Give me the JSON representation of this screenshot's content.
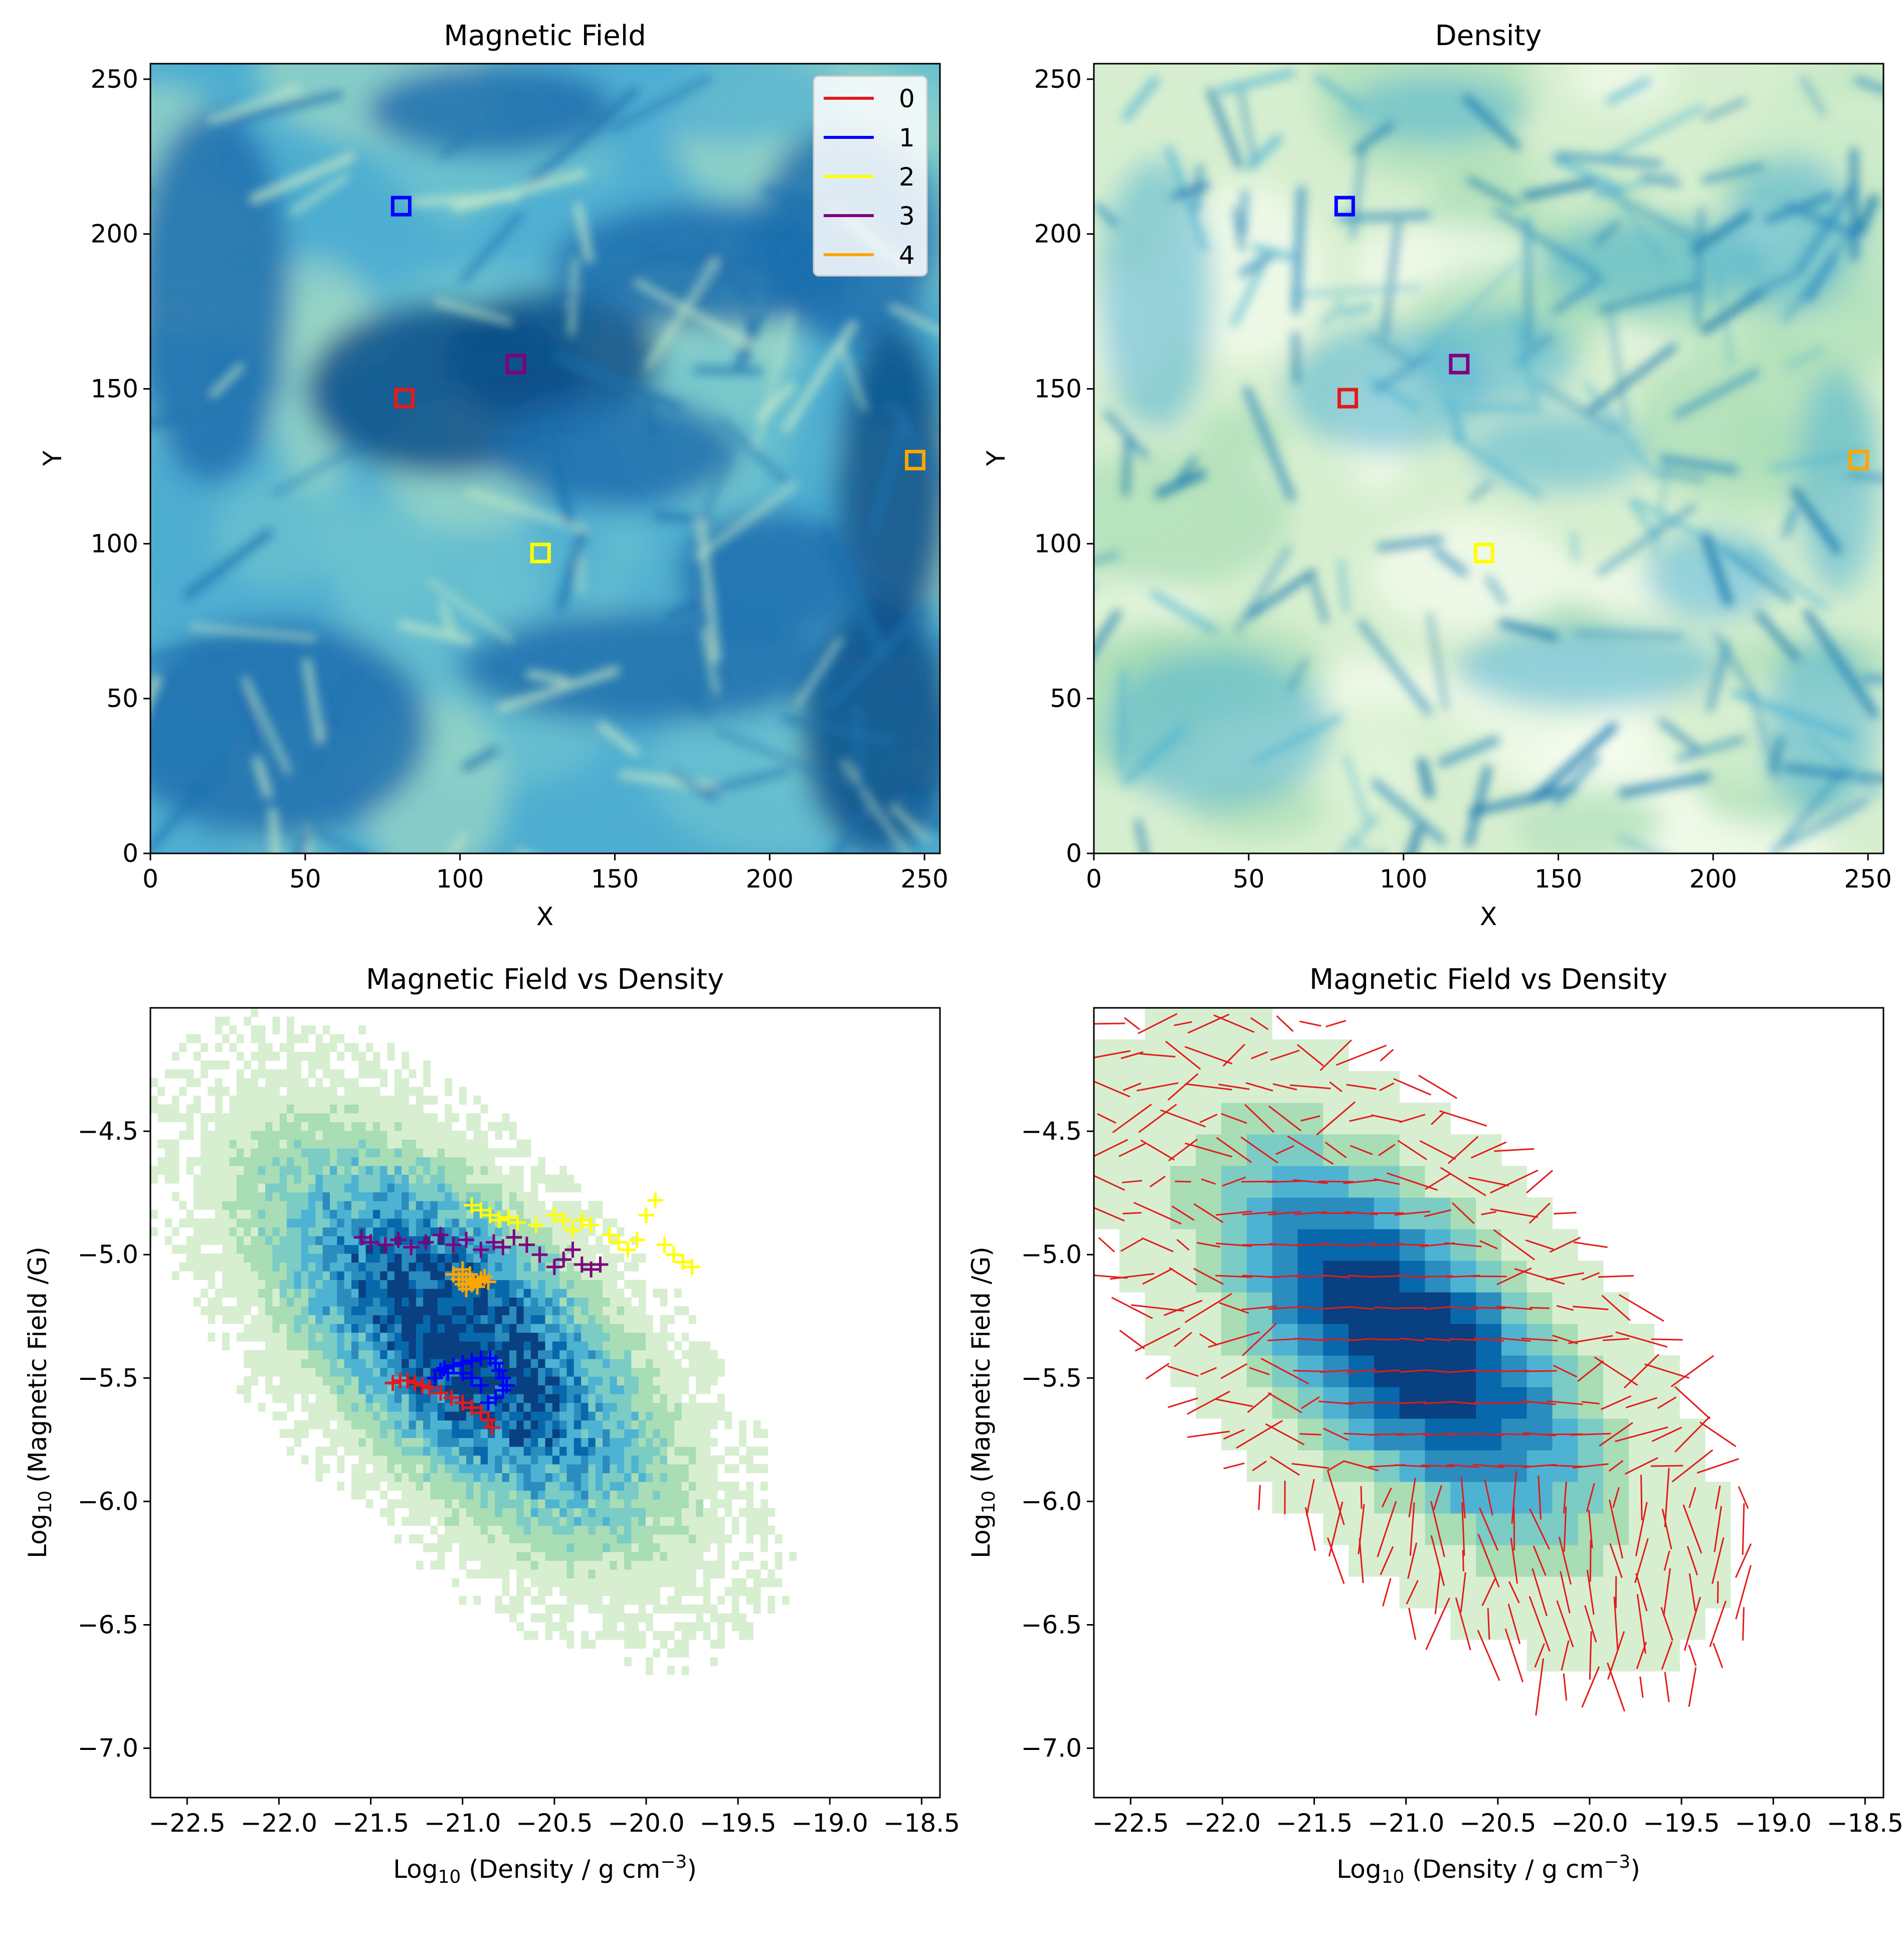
{
  "colors": {
    "magnetic_colormap": [
      "#0a4f8a",
      "#1d6fae",
      "#2f8fc1",
      "#4eaed1",
      "#6ec3cf",
      "#9fd8c4",
      "#cfeec7"
    ],
    "density_colormap": [
      "#f7fcf0",
      "#d7efd0",
      "#a8ddb5",
      "#7bccc4",
      "#4eb3d3",
      "#2b8cbe",
      "#0868ac",
      "#084081"
    ],
    "quiver": "#e41a1c"
  },
  "chart_data": [
    {
      "type": "heatmap",
      "title": "Magnetic Field",
      "xlabel": "X",
      "ylabel": "Y",
      "xlim": [
        0,
        255
      ],
      "ylim": [
        0,
        255
      ],
      "xticks": [
        "0",
        "50",
        "100",
        "150",
        "200",
        "250"
      ],
      "yticks": [
        "0",
        "50",
        "100",
        "150",
        "200",
        "250"
      ],
      "colormap": "YlGnBu",
      "legend_position": "upper right",
      "markers": [
        {
          "name": "0",
          "color": "#e41a1c",
          "x": 82,
          "y": 147
        },
        {
          "name": "1",
          "color": "#0000ff",
          "x": 81,
          "y": 209
        },
        {
          "name": "2",
          "color": "#ffff00",
          "x": 126,
          "y": 97
        },
        {
          "name": "3",
          "color": "#800080",
          "x": 118,
          "y": 158
        },
        {
          "name": "4",
          "color": "#ffa500",
          "x": 247,
          "y": 127
        }
      ]
    },
    {
      "type": "heatmap",
      "title": "Density",
      "xlabel": "X",
      "ylabel": "Y",
      "xlim": [
        0,
        255
      ],
      "ylim": [
        0,
        255
      ],
      "xticks": [
        "0",
        "50",
        "100",
        "150",
        "200",
        "250"
      ],
      "yticks": [
        "0",
        "50",
        "100",
        "150",
        "200",
        "250"
      ],
      "colormap": "GnBu",
      "markers": [
        {
          "name": "0",
          "color": "#e41a1c",
          "x": 82,
          "y": 147
        },
        {
          "name": "1",
          "color": "#0000ff",
          "x": 81,
          "y": 209
        },
        {
          "name": "2",
          "color": "#ffff00",
          "x": 126,
          "y": 97
        },
        {
          "name": "3",
          "color": "#800080",
          "x": 118,
          "y": 158
        },
        {
          "name": "4",
          "color": "#ffa500",
          "x": 247,
          "y": 127
        }
      ]
    },
    {
      "type": "heatmap",
      "subtype": "2d-histogram with trajectories",
      "title": "Magnetic Field vs Density",
      "xlabel": "Log10 (Density / g cm-3)",
      "ylabel": "Log10 (Magnetic Field /G)",
      "xlim": [
        -22.7,
        -18.4
      ],
      "ylim": [
        -7.2,
        -4.0
      ],
      "xticks": [
        "−22.5",
        "−22.0",
        "−21.5",
        "−21.0",
        "−20.5",
        "−20.0",
        "−19.5",
        "−19.0",
        "−18.5"
      ],
      "yticks": [
        "−7.0",
        "−6.5",
        "−6.0",
        "−5.5",
        "−5.0",
        "−4.5"
      ],
      "colormap": "GnBu",
      "series": [
        {
          "name": "0",
          "color": "#e41a1c",
          "x": [
            -21.38,
            -21.34,
            -21.3,
            -21.26,
            -21.22,
            -21.18,
            -21.12,
            -21.06,
            -21.0,
            -20.95,
            -20.9,
            -20.86,
            -20.84
          ],
          "y": [
            -5.52,
            -5.51,
            -5.51,
            -5.52,
            -5.53,
            -5.54,
            -5.56,
            -5.58,
            -5.6,
            -5.62,
            -5.64,
            -5.67,
            -5.7
          ]
        },
        {
          "name": "1",
          "color": "#0000ff",
          "x": [
            -21.15,
            -21.1,
            -21.05,
            -21.0,
            -20.95,
            -20.9,
            -20.85,
            -20.82,
            -20.8,
            -20.78,
            -20.76,
            -20.78,
            -20.82,
            -20.86,
            -20.9,
            -20.95,
            -21.0,
            -21.08,
            -21.12
          ],
          "y": [
            -5.5,
            -5.46,
            -5.45,
            -5.44,
            -5.43,
            -5.42,
            -5.42,
            -5.44,
            -5.47,
            -5.5,
            -5.53,
            -5.55,
            -5.58,
            -5.6,
            -5.53,
            -5.5,
            -5.48,
            -5.48,
            -5.47
          ]
        },
        {
          "name": "2",
          "color": "#ffff00",
          "x": [
            -20.95,
            -20.9,
            -20.85,
            -20.8,
            -20.75,
            -20.7,
            -20.6,
            -20.5,
            -20.45,
            -20.4,
            -20.35,
            -20.3,
            -20.2,
            -20.15,
            -20.1,
            -20.05,
            -20.0,
            -19.95,
            -19.9,
            -19.85,
            -19.8,
            -19.75
          ],
          "y": [
            -4.8,
            -4.82,
            -4.84,
            -4.86,
            -4.85,
            -4.87,
            -4.88,
            -4.84,
            -4.86,
            -4.9,
            -4.86,
            -4.88,
            -4.92,
            -4.95,
            -4.98,
            -4.94,
            -4.84,
            -4.78,
            -4.96,
            -5.0,
            -5.03,
            -5.05
          ]
        },
        {
          "name": "3",
          "color": "#800080",
          "x": [
            -21.55,
            -21.5,
            -21.42,
            -21.35,
            -21.28,
            -21.2,
            -21.12,
            -21.05,
            -20.98,
            -20.9,
            -20.83,
            -20.78,
            -20.72,
            -20.65,
            -20.58,
            -20.5,
            -20.45,
            -20.4,
            -20.35,
            -20.3,
            -20.25
          ],
          "y": [
            -4.93,
            -4.95,
            -4.96,
            -4.94,
            -4.97,
            -4.95,
            -4.92,
            -4.96,
            -4.94,
            -4.98,
            -4.95,
            -4.97,
            -4.93,
            -4.96,
            -5.0,
            -5.05,
            -5.02,
            -4.98,
            -5.04,
            -5.06,
            -5.04
          ]
        },
        {
          "name": "4",
          "color": "#ffa500",
          "x": [
            -21.05,
            -21.02,
            -21.0,
            -20.98,
            -20.96,
            -20.94,
            -20.92,
            -20.9,
            -20.88,
            -20.86,
            -20.98,
            -21.0,
            -20.95
          ],
          "y": [
            -5.08,
            -5.1,
            -5.12,
            -5.1,
            -5.08,
            -5.11,
            -5.13,
            -5.1,
            -5.09,
            -5.11,
            -5.14,
            -5.06,
            -5.12
          ]
        }
      ]
    },
    {
      "type": "heatmap",
      "subtype": "2d-histogram with quiver",
      "title": "Magnetic Field vs Density",
      "xlabel": "Log10 (Density / g cm-3)",
      "ylabel": "Log10 (Magnetic Field /G)",
      "xlim": [
        -22.7,
        -18.4
      ],
      "ylim": [
        -7.2,
        -4.0
      ],
      "xticks": [
        "−22.5",
        "−22.0",
        "−21.5",
        "−21.0",
        "−20.5",
        "−20.0",
        "−19.5",
        "−19.0",
        "−18.5"
      ],
      "yticks": [
        "−7.0",
        "−6.5",
        "−6.0",
        "−5.5",
        "−5.0",
        "−4.5"
      ],
      "colormap": "GnBu",
      "quiver_color": "#e41a1c"
    }
  ]
}
